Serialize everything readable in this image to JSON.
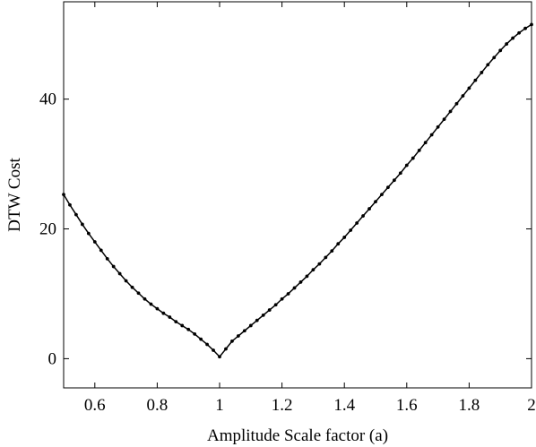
{
  "chart_data": {
    "type": "line",
    "title": "",
    "xlabel": "Amplitude Scale factor (a)",
    "ylabel": "DTW Cost",
    "xlim": [
      0.5,
      2.0
    ],
    "ylim": [
      -4.5,
      55.0
    ],
    "xticks": [
      0.6,
      0.8,
      1,
      1.2,
      1.4,
      1.6,
      1.8,
      2
    ],
    "xtick_labels": [
      "0.6",
      "0.8",
      "1",
      "1.2",
      "1.4",
      "1.6",
      "1.8",
      "2"
    ],
    "yticks": [
      0,
      20,
      40
    ],
    "ytick_labels": [
      "0",
      "20",
      "40"
    ],
    "grid": false,
    "color": "#000000",
    "series": [
      {
        "x": [
          0.5,
          0.52,
          0.54,
          0.56,
          0.58,
          0.6,
          0.62,
          0.64,
          0.66,
          0.68,
          0.7,
          0.72,
          0.74,
          0.76,
          0.78,
          0.8,
          0.82,
          0.84,
          0.86,
          0.88,
          0.9,
          0.92,
          0.94,
          0.96,
          0.98,
          1.0,
          1.02,
          1.04,
          1.06,
          1.08,
          1.1,
          1.12,
          1.14,
          1.16,
          1.18,
          1.2,
          1.22,
          1.24,
          1.26,
          1.28,
          1.3,
          1.32,
          1.34,
          1.36,
          1.38,
          1.4,
          1.42,
          1.44,
          1.46,
          1.48,
          1.5,
          1.52,
          1.54,
          1.56,
          1.58,
          1.6,
          1.62,
          1.64,
          1.66,
          1.68,
          1.7,
          1.72,
          1.74,
          1.76,
          1.78,
          1.8,
          1.82,
          1.84,
          1.86,
          1.88,
          1.9,
          1.92,
          1.94,
          1.96,
          1.98,
          2.0
        ],
        "y": [
          25.3,
          23.7,
          22.2,
          20.7,
          19.3,
          18.0,
          16.7,
          15.4,
          14.2,
          13.1,
          12.0,
          11.0,
          10.1,
          9.2,
          8.4,
          7.7,
          7.0,
          6.4,
          5.7,
          5.1,
          4.5,
          3.8,
          3.0,
          2.2,
          1.3,
          0.3,
          1.5,
          2.7,
          3.5,
          4.3,
          5.1,
          5.9,
          6.7,
          7.5,
          8.3,
          9.2,
          10.0,
          10.9,
          11.8,
          12.7,
          13.7,
          14.6,
          15.6,
          16.6,
          17.7,
          18.7,
          19.8,
          20.9,
          22.0,
          23.1,
          24.2,
          25.3,
          26.4,
          27.5,
          28.6,
          29.8,
          30.9,
          32.1,
          33.3,
          34.5,
          35.7,
          36.9,
          38.1,
          39.3,
          40.5,
          41.7,
          42.9,
          44.1,
          45.3,
          46.4,
          47.5,
          48.5,
          49.4,
          50.2,
          50.9,
          51.5
        ]
      }
    ]
  }
}
